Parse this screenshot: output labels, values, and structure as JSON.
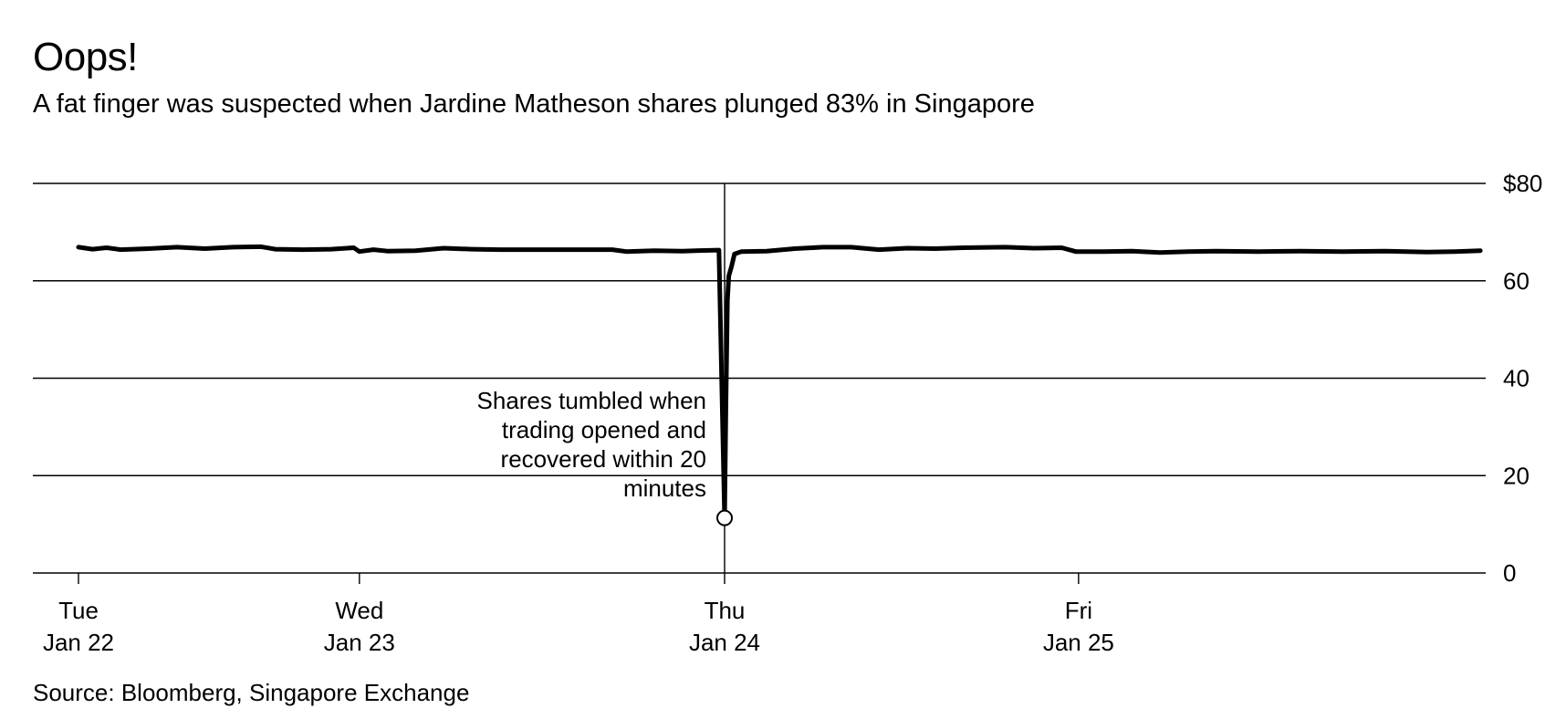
{
  "title": "Oops!",
  "subtitle": "A fat finger was suspected when Jardine Matheson shares plunged 83% in Singapore",
  "source": "Source: Bloomberg, Singapore Exchange",
  "chart_data": {
    "type": "line",
    "title": "Oops!",
    "subtitle": "A fat finger was suspected when Jardine Matheson shares plunged 83% in Singapore",
    "xlabel": "",
    "ylabel": "",
    "y_ticks": [
      0,
      20,
      40,
      60,
      80
    ],
    "y_tick_labels": [
      "0",
      "20",
      "40",
      "60",
      "$80"
    ],
    "ylim": [
      0,
      80
    ],
    "x_ticks": [
      {
        "line1": "Tue",
        "line2": "Jan 22",
        "x": 0
      },
      {
        "line1": "Wed",
        "line2": "Jan 23",
        "x": 1
      },
      {
        "line1": "Thu",
        "line2": "Jan 24",
        "x": 2.3
      },
      {
        "line1": "Fri",
        "line2": "Jan 25",
        "x": 3.56
      }
    ],
    "xlim": [
      -0.16,
      4.99
    ],
    "grid": true,
    "grid_axis": "y",
    "series": [
      {
        "values": [
          [
            0,
            66.9
          ],
          [
            0.05,
            66.5
          ],
          [
            0.1,
            66.8
          ],
          [
            0.15,
            66.4
          ],
          [
            0.25,
            66.6
          ],
          [
            0.35,
            66.9
          ],
          [
            0.45,
            66.6
          ],
          [
            0.55,
            66.9
          ],
          [
            0.65,
            67.0
          ],
          [
            0.7,
            66.5
          ],
          [
            0.8,
            66.4
          ],
          [
            0.9,
            66.5
          ],
          [
            0.98,
            66.8
          ],
          [
            1.0,
            66.0
          ],
          [
            1.05,
            66.4
          ],
          [
            1.1,
            66.1
          ],
          [
            1.2,
            66.2
          ],
          [
            1.3,
            66.7
          ],
          [
            1.4,
            66.5
          ],
          [
            1.5,
            66.4
          ],
          [
            1.7,
            66.4
          ],
          [
            1.9,
            66.4
          ],
          [
            1.95,
            66.0
          ],
          [
            2.05,
            66.2
          ],
          [
            2.15,
            66.1
          ],
          [
            2.28,
            66.3
          ],
          [
            2.3,
            11.3
          ],
          [
            2.305,
            35
          ],
          [
            2.31,
            56
          ],
          [
            2.315,
            61
          ],
          [
            2.325,
            63
          ],
          [
            2.335,
            65.5
          ],
          [
            2.36,
            66.0
          ],
          [
            2.45,
            66.1
          ],
          [
            2.55,
            66.6
          ],
          [
            2.65,
            66.9
          ],
          [
            2.75,
            66.9
          ],
          [
            2.85,
            66.4
          ],
          [
            2.95,
            66.7
          ],
          [
            3.05,
            66.6
          ],
          [
            3.15,
            66.8
          ],
          [
            3.3,
            66.9
          ],
          [
            3.4,
            66.7
          ],
          [
            3.5,
            66.8
          ],
          [
            3.55,
            66.0
          ],
          [
            3.65,
            66.0
          ],
          [
            3.75,
            66.1
          ],
          [
            3.85,
            65.8
          ],
          [
            3.95,
            66.0
          ],
          [
            4.05,
            66.1
          ],
          [
            4.2,
            66.0
          ],
          [
            4.35,
            66.1
          ],
          [
            4.5,
            66.0
          ],
          [
            4.65,
            66.1
          ],
          [
            4.8,
            65.9
          ],
          [
            4.9,
            66.0
          ],
          [
            4.99,
            66.2
          ]
        ]
      }
    ],
    "annotations": [
      {
        "lines": [
          "Shares tumbled when",
          "trading opened and",
          "recovered within 20",
          "minutes"
        ],
        "x": 2.3,
        "y": 11.3
      }
    ]
  }
}
